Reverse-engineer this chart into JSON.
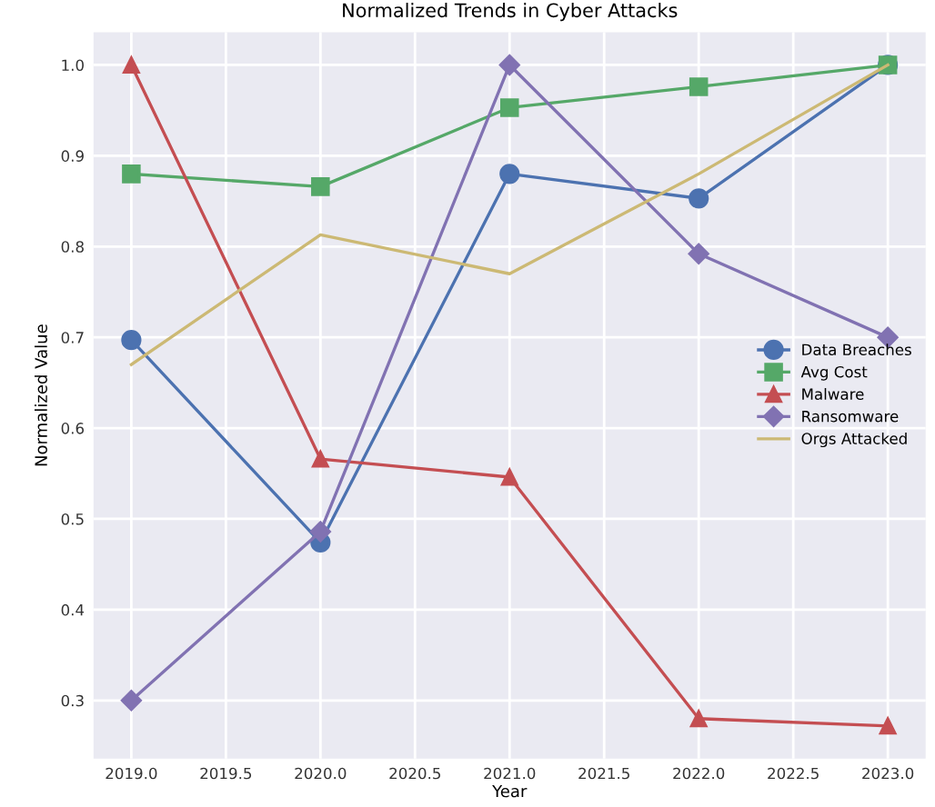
{
  "chart_data": {
    "type": "line",
    "title": "Normalized Trends in Cyber Attacks",
    "xlabel": "Year",
    "ylabel": "Normalized Value",
    "x": [
      2019,
      2020,
      2021,
      2022,
      2023
    ],
    "series": [
      {
        "name": "Data Breaches",
        "color": "#4c72b0",
        "marker": "circle",
        "values": [
          0.697,
          0.474,
          0.88,
          0.853,
          1.0
        ]
      },
      {
        "name": "Avg Cost",
        "color": "#55a868",
        "marker": "square",
        "values": [
          0.88,
          0.866,
          0.953,
          0.976,
          1.0
        ]
      },
      {
        "name": "Malware",
        "color": "#c44e52",
        "marker": "triangle",
        "values": [
          1.0,
          0.566,
          0.546,
          0.28,
          0.272
        ]
      },
      {
        "name": "Ransomware",
        "color": "#8172b2",
        "marker": "diamond",
        "values": [
          0.3,
          0.486,
          1.0,
          0.792,
          0.7
        ]
      },
      {
        "name": "Orgs Attacked",
        "color": "#ccb974",
        "marker": "none",
        "values": [
          0.67,
          0.813,
          0.77,
          0.88,
          1.0
        ]
      }
    ],
    "xlim": [
      2018.8,
      2023.2
    ],
    "ylim": [
      0.236,
      1.036
    ],
    "xticks": [
      {
        "value": 2019,
        "label": "2019.0"
      },
      {
        "value": 2019.5,
        "label": "2019.5"
      },
      {
        "value": 2020,
        "label": "2020.0"
      },
      {
        "value": 2020.5,
        "label": "2020.5"
      },
      {
        "value": 2021,
        "label": "2021.0"
      },
      {
        "value": 2021.5,
        "label": "2021.5"
      },
      {
        "value": 2022,
        "label": "2022.0"
      },
      {
        "value": 2022.5,
        "label": "2022.5"
      },
      {
        "value": 2023,
        "label": "2023.0"
      }
    ],
    "yticks": [
      0.3,
      0.4,
      0.5,
      0.6,
      0.7,
      0.8,
      0.9,
      {
        "value": 1,
        "label": "1.0"
      }
    ],
    "grid": true,
    "legend": "right"
  }
}
